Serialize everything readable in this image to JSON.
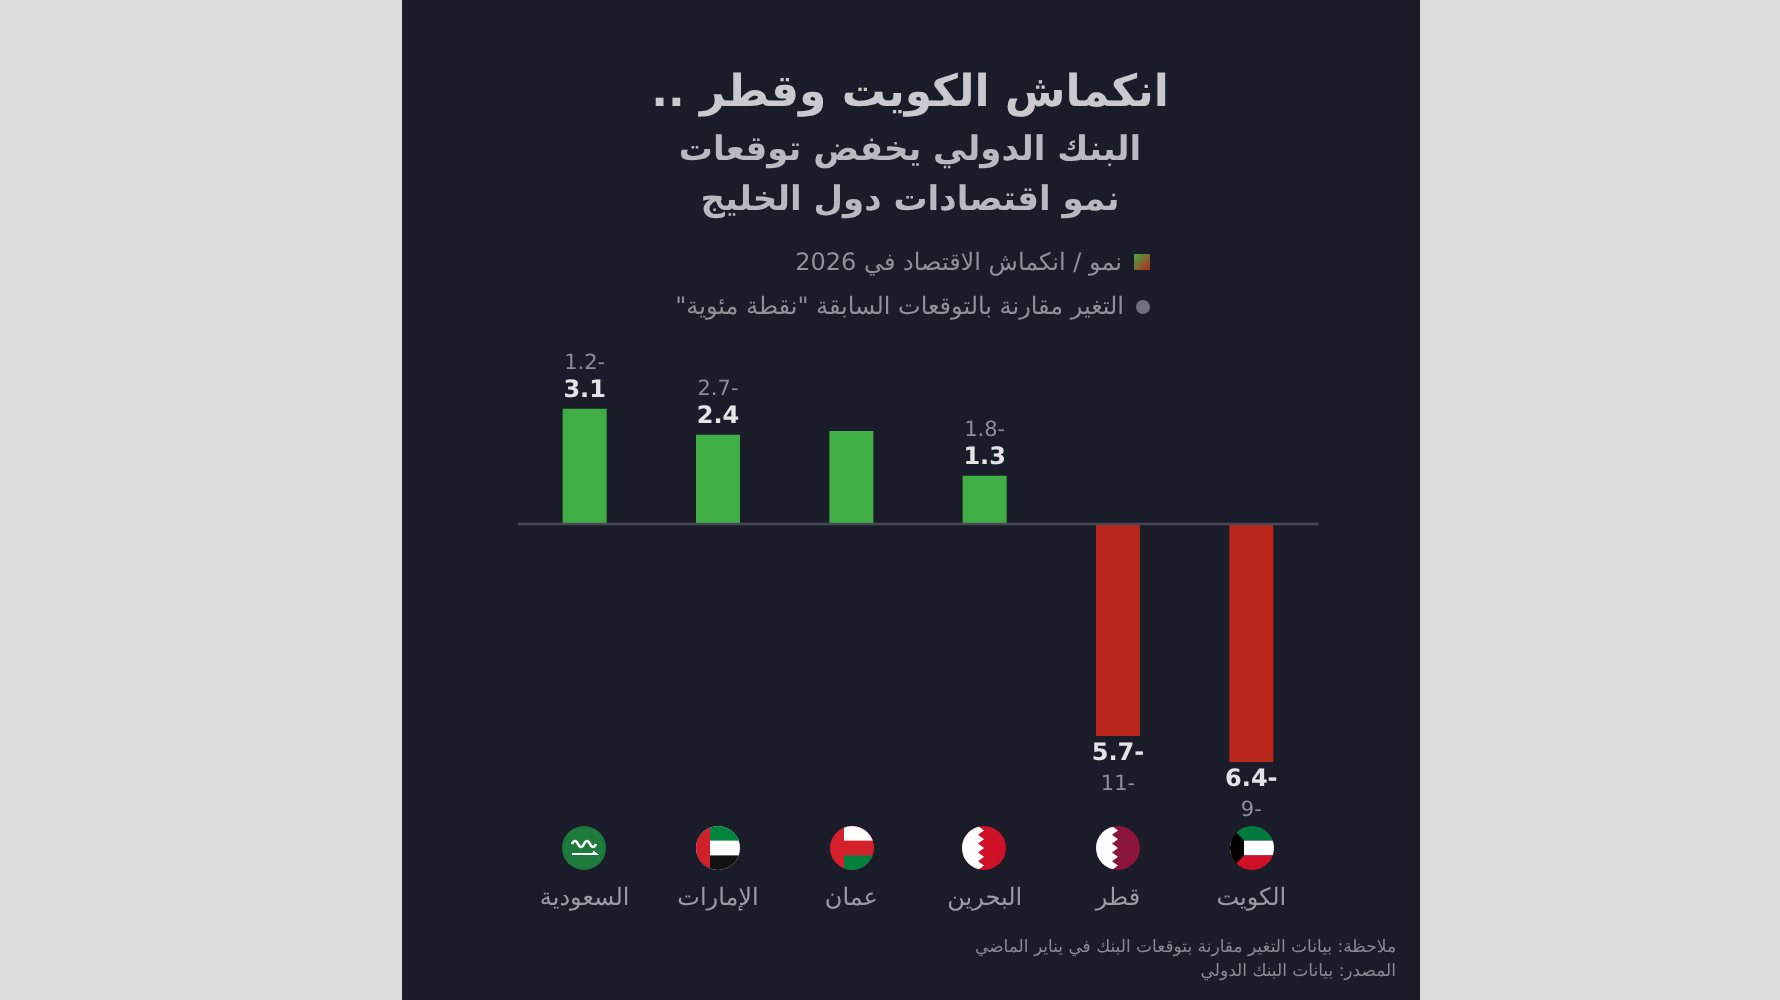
{
  "chart_data": {
    "type": "bar",
    "title": "انكماش الكويت وقطر ..",
    "subtitle": "البنك الدولي يخفض توقعات نمو اقتصادات دول الخليج",
    "categories": [
      "السعودية",
      "الإمارات",
      "عمان",
      "البحرين",
      "قطر",
      "الكويت"
    ],
    "series": [
      {
        "name": "نمو / انكماش الاقتصاد في 2026",
        "colors": [
          "#3fae44",
          "#3fae44",
          "#3fae44",
          "#3fae44",
          "#b8261b",
          "#b8261b"
        ],
        "values": [
          3.1,
          2.4,
          2.5,
          1.3,
          -5.7,
          -6.4
        ],
        "value_labels": [
          "3.1",
          "2.4",
          null,
          "1.3",
          "-5.7",
          "-6.4"
        ]
      }
    ],
    "ref_lines": [
      {
        "axis": "y",
        "value": 0,
        "color": "#474856"
      }
    ],
    "annotations": [
      "التغير مقارنة بالتوقعات السابقة \"نقطة مئوية\"",
      {
        "text": "-1.2",
        "x": "السعودية",
        "y": 3.1
      },
      {
        "text": "-2.7",
        "x": "الإمارات",
        "y": 2.4
      },
      {
        "text": "-1.8",
        "x": "البحرين",
        "y": 1.3
      },
      {
        "text": "-11",
        "x": "قطر",
        "y": -5.7
      },
      {
        "text": "-9",
        "x": "الكويت",
        "y": -6.4
      },
      "ملاحظة: بيانات التغير مقارنة بتوقعات البنك في يناير الماضي",
      "المصدر: بيانات البنك الدولي"
    ],
    "legend": "top right",
    "tick_labels": "x"
  }
}
